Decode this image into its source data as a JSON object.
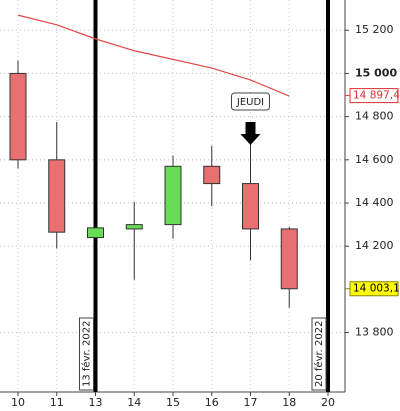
{
  "chart_data": {
    "type": "candlestick",
    "categories": [
      "10",
      "11",
      "13",
      "14",
      "15",
      "16",
      "17",
      "18",
      "20"
    ],
    "open": [
      15000,
      14600,
      14240,
      14280,
      14300,
      14570,
      14490,
      14280,
      null
    ],
    "high": [
      15060,
      14775,
      14290,
      14405,
      14620,
      14665,
      14720,
      14290,
      null
    ],
    "low": [
      14560,
      14190,
      14235,
      14045,
      14235,
      14385,
      14135,
      13915,
      null
    ],
    "close": [
      14600,
      14265,
      14285,
      14300,
      14570,
      14490,
      14280,
      14003,
      null
    ],
    "up_color": "#66dd55",
    "down_color": "#e87070",
    "moving_average": {
      "color": "#e04848",
      "values": [
        15270,
        15225,
        15160,
        15105,
        15065,
        15025,
        14970,
        14895,
        null
      ]
    },
    "ylim": [
      13525,
      15340
    ],
    "yticks": [
      {
        "value": 15200,
        "label": "15 200"
      },
      {
        "value": 15000,
        "label": "15 000"
      },
      {
        "value": 14800,
        "label": "14 800"
      },
      {
        "value": 14600,
        "label": "14 600"
      },
      {
        "value": 14400,
        "label": "14 400"
      },
      {
        "value": 14200,
        "label": "14 200"
      },
      {
        "value": 13800,
        "label": "13 800"
      }
    ],
    "bold_tick": 15000,
    "grid": true,
    "price_markers": [
      {
        "value": 14897.4,
        "label": "14 897,4",
        "color": "#e03030",
        "fill": "#ffffff"
      },
      {
        "value": 14003.1,
        "label": "14 003,1",
        "color": "#888800",
        "fill": "#ffff00"
      }
    ],
    "events": [
      {
        "category": "13",
        "label": "13 févr. 2022"
      },
      {
        "category": "20",
        "label": "20 févr. 2022"
      }
    ],
    "annotation": {
      "category": "17",
      "text": "JEUDI"
    }
  }
}
